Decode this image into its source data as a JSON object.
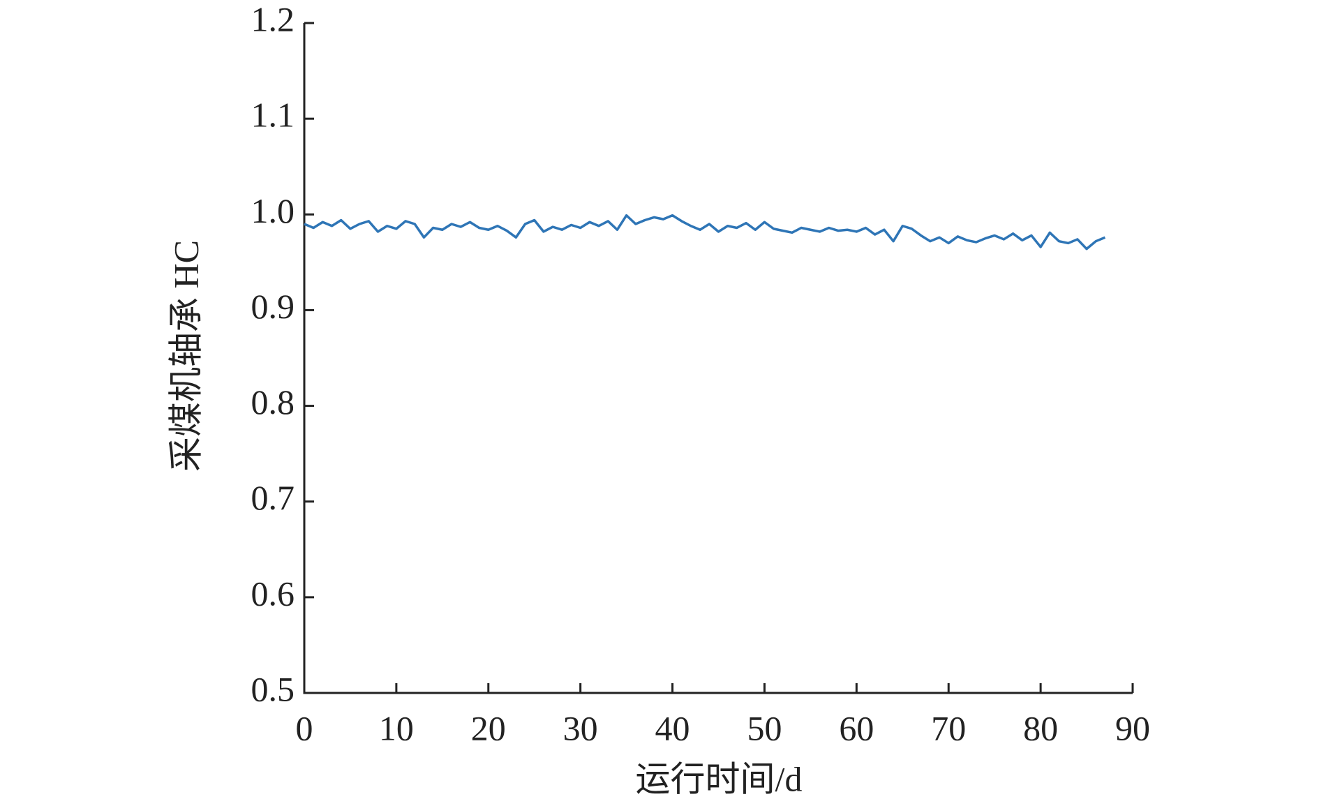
{
  "chart_data": {
    "type": "line",
    "x_label": "运行时间/d",
    "y_label": "采煤机轴承 HC",
    "x": [
      0,
      1,
      2,
      3,
      4,
      5,
      6,
      7,
      8,
      9,
      10,
      11,
      12,
      13,
      14,
      15,
      16,
      17,
      18,
      19,
      20,
      21,
      22,
      23,
      24,
      25,
      26,
      27,
      28,
      29,
      30,
      31,
      32,
      33,
      34,
      35,
      36,
      37,
      38,
      39,
      40,
      41,
      42,
      43,
      44,
      45,
      46,
      47,
      48,
      49,
      50,
      51,
      52,
      53,
      54,
      55,
      56,
      57,
      58,
      59,
      60,
      61,
      62,
      63,
      64,
      65,
      66,
      67,
      68,
      69,
      70,
      71,
      72,
      73,
      74,
      75,
      76,
      77,
      78,
      79,
      80,
      81,
      82,
      83,
      84,
      85,
      86,
      87
    ],
    "series": [
      {
        "color": "#2e75b6",
        "values": [
          0.99,
          0.986,
          0.992,
          0.988,
          0.994,
          0.985,
          0.99,
          0.993,
          0.982,
          0.988,
          0.985,
          0.993,
          0.99,
          0.976,
          0.986,
          0.984,
          0.99,
          0.987,
          0.992,
          0.986,
          0.984,
          0.988,
          0.983,
          0.976,
          0.99,
          0.994,
          0.982,
          0.987,
          0.984,
          0.989,
          0.986,
          0.992,
          0.988,
          0.993,
          0.984,
          0.999,
          0.99,
          0.994,
          0.997,
          0.995,
          0.999,
          0.993,
          0.988,
          0.984,
          0.99,
          0.982,
          0.988,
          0.986,
          0.991,
          0.984,
          0.992,
          0.985,
          0.983,
          0.981,
          0.986,
          0.984,
          0.982,
          0.986,
          0.983,
          0.984,
          0.982,
          0.986,
          0.979,
          0.984,
          0.972,
          0.988,
          0.985,
          0.978,
          0.972,
          0.976,
          0.97,
          0.977,
          0.973,
          0.971,
          0.975,
          0.978,
          0.974,
          0.98,
          0.973,
          0.978,
          0.966,
          0.981,
          0.972,
          0.97,
          0.974,
          0.964,
          0.972,
          0.976
        ]
      }
    ],
    "xlim": [
      0,
      90
    ],
    "xticks": [
      0,
      10,
      20,
      30,
      40,
      50,
      60,
      70,
      80,
      90
    ],
    "ylim": [
      0.5,
      1.2
    ],
    "yticks": [
      0.5,
      0.6,
      0.7,
      0.8,
      0.9,
      {
        "value": 1,
        "label": "1.0"
      },
      1.1,
      1.2
    ],
    "grid": false
  }
}
